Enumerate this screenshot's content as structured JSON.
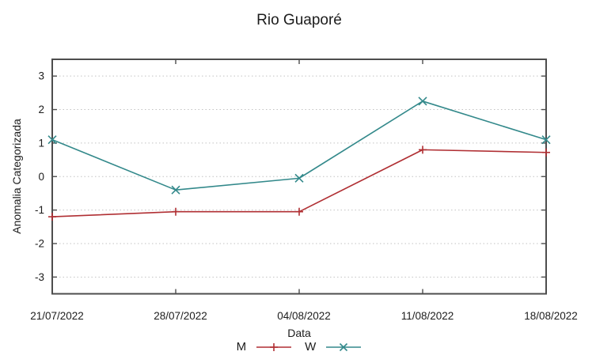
{
  "colors": {
    "series_m": "#b02f33",
    "series_w": "#33898b",
    "border": "#4d4d4d",
    "grid": "#c2c2c2",
    "text": "#1c1c1c"
  },
  "chart_data": {
    "type": "line",
    "title": "Rio Guaporé",
    "xlabel": "Data",
    "ylabel": "Anomalia Categorizada",
    "x": [
      "21/07/2022",
      "28/07/2022",
      "04/08/2022",
      "11/08/2022",
      "18/08/2022"
    ],
    "yticks": [
      -3,
      -2,
      -1,
      0,
      1,
      2,
      3
    ],
    "ylim": [
      -3.5,
      3.5
    ],
    "grid": "horizontal-dotted",
    "legend_position": "below-xlabel",
    "series": [
      {
        "name": "M",
        "marker": "plus",
        "color": "#b02f33",
        "values": [
          -1.2,
          -1.05,
          -1.05,
          0.8,
          0.72
        ]
      },
      {
        "name": "W",
        "marker": "cross",
        "color": "#33898b",
        "values": [
          1.1,
          -0.4,
          -0.05,
          2.25,
          1.1
        ]
      }
    ]
  }
}
